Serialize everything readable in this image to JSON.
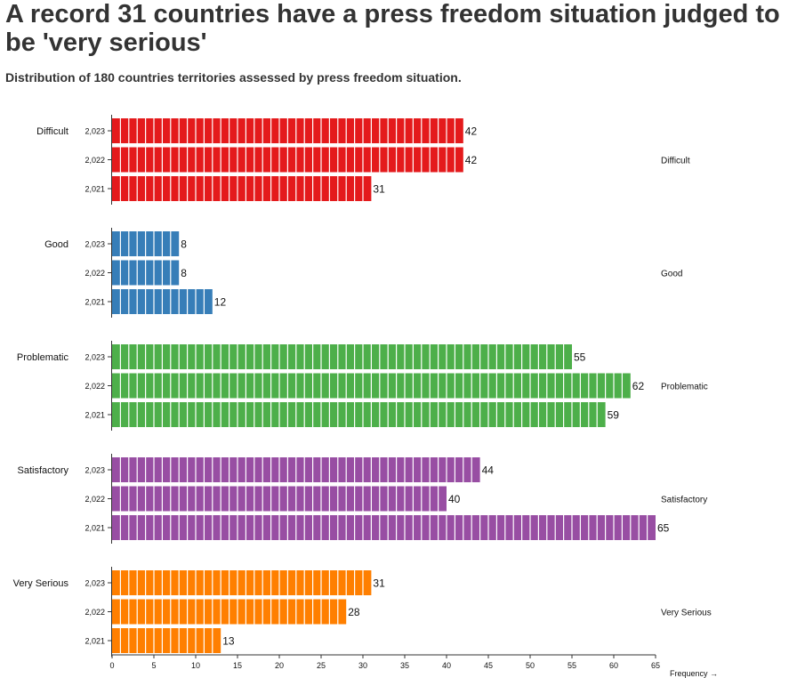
{
  "title": "A record 31 countries have a press freedom situation judged to be 'very serious'",
  "subtitle": "Distribution of 180 countries territories assessed by press freedom situation.",
  "chart_data": {
    "type": "bar",
    "orientation": "horizontal",
    "xlabel": "Frequency →",
    "xlim": [
      0,
      65
    ],
    "x_ticks": [
      "0",
      "5",
      "10",
      "15",
      "20",
      "25",
      "30",
      "35",
      "40",
      "45",
      "50",
      "55",
      "60",
      "65"
    ],
    "grid": false,
    "groups": [
      {
        "name": "Difficult",
        "color": "#e41a1c",
        "rows": [
          {
            "year": "2,023",
            "value": 42
          },
          {
            "year": "2,022",
            "value": 42
          },
          {
            "year": "2,021",
            "value": 31
          }
        ]
      },
      {
        "name": "Good",
        "color": "#377eb8",
        "rows": [
          {
            "year": "2,023",
            "value": 8
          },
          {
            "year": "2,022",
            "value": 8
          },
          {
            "year": "2,021",
            "value": 12
          }
        ]
      },
      {
        "name": "Problematic",
        "color": "#4daf4a",
        "rows": [
          {
            "year": "2,023",
            "value": 55
          },
          {
            "year": "2,022",
            "value": 62
          },
          {
            "year": "2,021",
            "value": 59
          }
        ]
      },
      {
        "name": "Satisfactory",
        "color": "#984ea3",
        "rows": [
          {
            "year": "2,023",
            "value": 44
          },
          {
            "year": "2,022",
            "value": 40
          },
          {
            "year": "2,021",
            "value": 65
          }
        ]
      },
      {
        "name": "Very Serious",
        "color": "#ff7f00",
        "rows": [
          {
            "year": "2,023",
            "value": 31
          },
          {
            "year": "2,022",
            "value": 28
          },
          {
            "year": "2,021",
            "value": 13
          }
        ]
      }
    ]
  }
}
